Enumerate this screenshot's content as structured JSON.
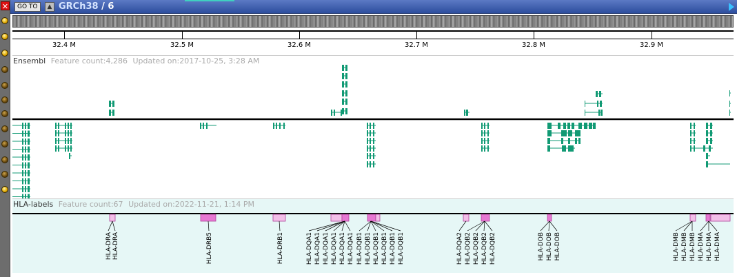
{
  "toolbar": {
    "goto_label": "GO TO",
    "assembly": "GRCh38",
    "separator": "/",
    "chromosome": "6"
  },
  "ruler": {
    "ticks": [
      "32.4 M",
      "32.5 M",
      "32.6 M",
      "32.7 M",
      "32.8 M",
      "32.9 M"
    ]
  },
  "tracks": {
    "ensembl": {
      "name": "Ensembl",
      "feature_count": "Feature count:4,286",
      "updated": "Updated on:2017-10-25, 3:28 AM",
      "color": "#119a74"
    },
    "hla": {
      "name": "HLA-labels",
      "feature_count": "Feature count:67",
      "updated": "Updated on:2022-11-21, 1:14 PM",
      "fill": "#f2bfe8",
      "stroke": "#b0409a",
      "labels": [
        "HLA-DRA",
        "HLA-DRA",
        "HLA-DRB5",
        "HLA-DRB1",
        "HLA-DQA1",
        "HLA-DQA1",
        "HLA-DQA1",
        "HLA-DQA1",
        "HLA-DQA1",
        "HLA-DQA1",
        "HLA-DQB1",
        "HLA-DQB1",
        "HLA-DQB1",
        "HLA-DQB1",
        "HLA-DQB1",
        "HLA-DQB1",
        "HLA-DQA2",
        "HLA-DQB2",
        "HLA-DQB2",
        "HLA-DQB2",
        "HLA-DQB2",
        "HLA-DOB",
        "HLA-DOB",
        "HLA-DOB",
        "HLA-DMB",
        "HLA-DMB",
        "HLA-DMB",
        "HLA-DMA",
        "HLA-DMA",
        "HLA-DMA"
      ]
    }
  },
  "gutter_icons": [
    "close-icon",
    "info-icon"
  ]
}
